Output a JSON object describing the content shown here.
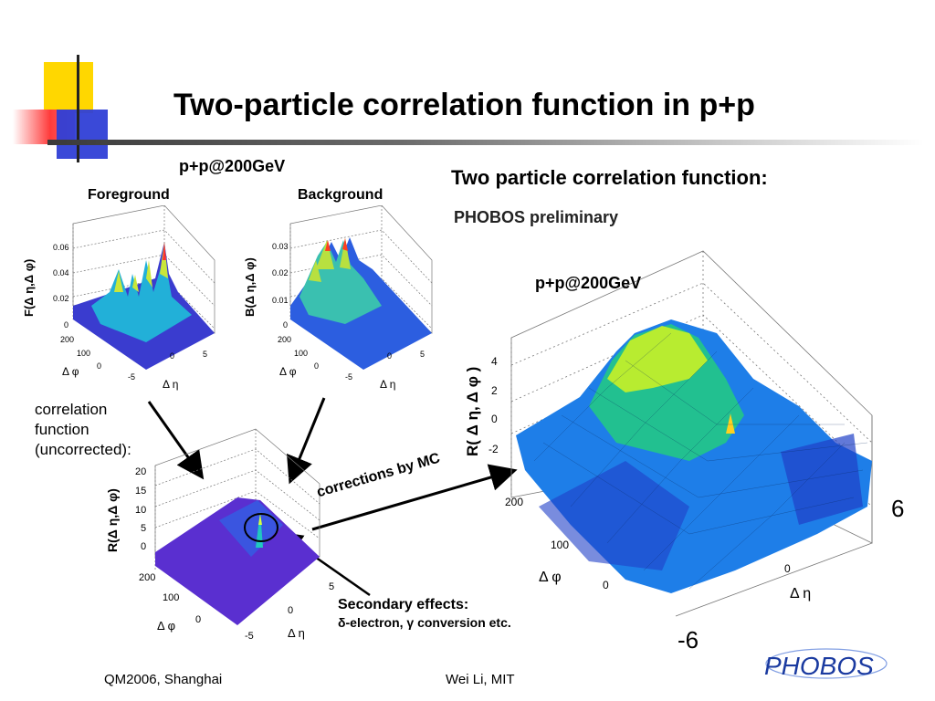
{
  "slide": {
    "title": "Two-particle correlation function in p+p"
  },
  "left": {
    "energy_label": "p+p@200GeV",
    "foreground_label": "Foreground",
    "background_label": "Background",
    "fg_ylabel": "F(Δ η,Δ φ)",
    "bg_ylabel": "B(Δ η,Δ φ)",
    "fg_zticks": [
      "0.06",
      "0.04",
      "0.02",
      "0"
    ],
    "bg_zticks": [
      "0.03",
      "0.02",
      "0.01",
      "0"
    ],
    "corr_note": [
      "correlation",
      "function",
      "(uncorrected):"
    ],
    "r_ylabel": "R(Δ η,Δ φ)",
    "r_zticks": [
      "20",
      "15",
      "10",
      "5",
      "0"
    ],
    "phi_ticks": [
      "200",
      "100",
      "0"
    ],
    "eta_ticks": [
      "-5",
      "0",
      "5"
    ],
    "phi_label": "Δ φ",
    "eta_label": "Δ η"
  },
  "arrow_label": "corrections by MC",
  "secondary": {
    "line1": "Secondary effects:",
    "line2": "δ-electron, γ conversion etc."
  },
  "right": {
    "heading": "Two particle correlation function:",
    "watermark": "PHOBOS preliminary",
    "energy_label": "p+p@200GeV",
    "ylabel": "R( Δ η, Δ φ )",
    "zticks": [
      "4",
      "2",
      "0",
      "-2"
    ],
    "phi_ticks": [
      "200",
      "100",
      "0"
    ],
    "eta_tick": "0",
    "phi_label": "Δ φ",
    "eta_label": "Δ η",
    "eta_max": "6",
    "eta_min": "-6"
  },
  "footer": {
    "left": "QM2006, Shanghai",
    "center": "Wei Li, MIT",
    "logo_text": "PHOBOS"
  },
  "colors": {
    "yellow": "#ffd700",
    "red": "#ff3b3b",
    "blue": "#2f3fd6",
    "arrow": "#000000"
  }
}
